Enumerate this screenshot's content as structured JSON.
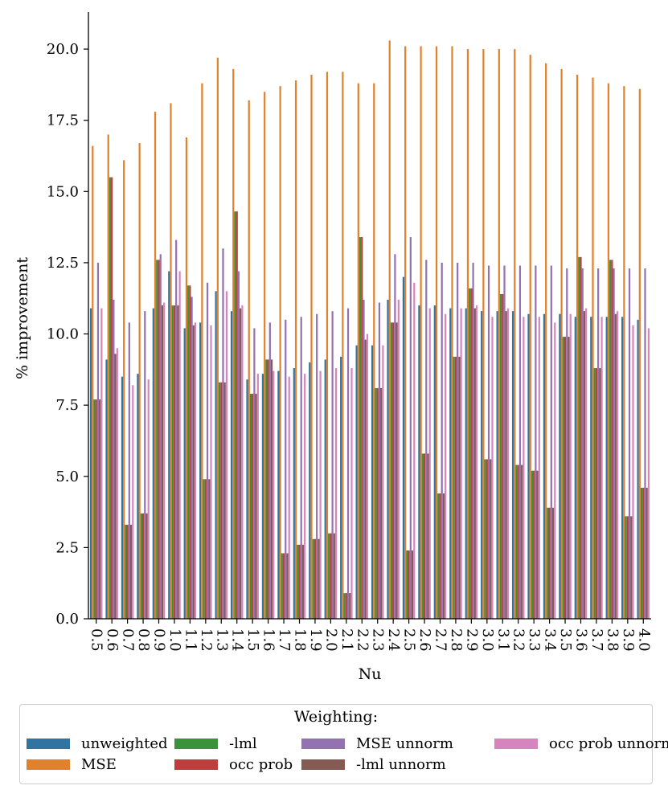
{
  "chart_data": {
    "type": "bar",
    "title": "",
    "xlabel": "Nu",
    "ylabel": "% improvement",
    "ylim": [
      0,
      21.3
    ],
    "yticks": [
      "0.0",
      "2.5",
      "5.0",
      "7.5",
      "10.0",
      "12.5",
      "15.0",
      "17.5",
      "20.0"
    ],
    "categories": [
      "0.5",
      "0.6",
      "0.7",
      "0.8",
      "0.9",
      "1.0",
      "1.1",
      "1.2",
      "1.3",
      "1.4",
      "1.5",
      "1.6",
      "1.7",
      "1.8",
      "1.9",
      "2.0",
      "2.1",
      "2.2",
      "2.3",
      "2.4",
      "2.5",
      "2.6",
      "2.7",
      "2.8",
      "2.9",
      "3.0",
      "3.1",
      "3.2",
      "3.3",
      "3.4",
      "3.5",
      "3.6",
      "3.7",
      "3.8",
      "3.9",
      "4.0"
    ],
    "legend_title": "Weighting:",
    "legend_position": "below",
    "series": [
      {
        "name": "unweighted",
        "color": "#3274a1",
        "values": [
          10.9,
          9.1,
          8.5,
          8.6,
          10.9,
          12.2,
          10.2,
          10.4,
          11.5,
          10.8,
          8.4,
          8.6,
          8.7,
          8.8,
          9.0,
          9.1,
          9.2,
          9.6,
          9.6,
          11.2,
          12.0,
          11.0,
          11.0,
          10.9,
          10.9,
          10.8,
          10.8,
          10.8,
          10.7,
          10.7,
          10.7,
          10.6,
          10.6,
          10.6,
          10.6,
          10.5
        ]
      },
      {
        "name": "MSE",
        "color": "#e1812c",
        "values": [
          16.6,
          17.0,
          16.1,
          16.7,
          17.8,
          18.1,
          16.9,
          18.8,
          19.7,
          19.3,
          18.2,
          18.5,
          18.7,
          18.9,
          19.1,
          19.2,
          19.2,
          18.8,
          18.8,
          20.3,
          20.1,
          20.1,
          20.1,
          20.1,
          20.0,
          20.0,
          20.0,
          20.0,
          19.8,
          19.5,
          19.3,
          19.1,
          19.0,
          18.8,
          18.7,
          18.6
        ]
      },
      {
        "name": "-lml",
        "color": "#3a923a",
        "values": [
          7.7,
          15.5,
          3.3,
          3.7,
          12.6,
          11.0,
          11.7,
          4.9,
          8.3,
          14.3,
          7.9,
          9.1,
          2.3,
          2.6,
          2.8,
          3.0,
          0.9,
          13.4,
          8.1,
          10.4,
          2.4,
          5.8,
          4.4,
          9.2,
          11.6,
          5.6,
          11.4,
          5.4,
          5.2,
          3.9,
          9.9,
          12.7,
          8.8,
          12.6,
          3.6,
          4.6
        ]
      },
      {
        "name": "occ prob",
        "color": "#c03d3e",
        "values": [
          7.7,
          15.5,
          3.3,
          3.7,
          12.6,
          11.0,
          11.7,
          4.9,
          8.3,
          14.3,
          7.9,
          9.1,
          2.3,
          2.6,
          2.8,
          3.0,
          0.9,
          13.4,
          8.1,
          10.4,
          2.4,
          5.8,
          4.4,
          9.2,
          11.6,
          5.6,
          11.4,
          5.4,
          5.2,
          3.9,
          9.9,
          12.7,
          8.8,
          12.6,
          3.6,
          4.6
        ]
      },
      {
        "name": "MSE unnorm",
        "color": "#9372b2",
        "values": [
          12.5,
          11.2,
          10.4,
          10.8,
          12.8,
          13.3,
          11.3,
          11.8,
          13.0,
          12.2,
          10.2,
          10.4,
          10.5,
          10.6,
          10.7,
          10.8,
          10.9,
          11.2,
          11.1,
          12.8,
          13.4,
          12.6,
          12.5,
          12.5,
          12.5,
          12.4,
          12.4,
          12.4,
          12.4,
          12.4,
          12.3,
          12.3,
          12.3,
          12.3,
          12.3,
          12.3
        ]
      },
      {
        "name": "-lml unnorm",
        "color": "#845b53",
        "values": [
          7.7,
          9.3,
          3.3,
          3.7,
          11.0,
          11.0,
          10.3,
          4.9,
          8.3,
          10.9,
          7.9,
          9.1,
          2.3,
          2.6,
          2.8,
          3.0,
          0.9,
          9.8,
          8.1,
          10.4,
          2.4,
          5.8,
          4.4,
          9.2,
          10.9,
          5.6,
          10.8,
          5.4,
          5.2,
          3.9,
          9.9,
          10.8,
          8.8,
          10.7,
          3.6,
          4.6
        ]
      },
      {
        "name": "occ prob unnorm",
        "color": "#d684bd",
        "values": [
          10.9,
          9.5,
          8.2,
          8.4,
          11.1,
          12.2,
          10.4,
          10.3,
          11.5,
          11.0,
          8.6,
          8.7,
          8.5,
          8.6,
          8.7,
          8.8,
          8.8,
          10.0,
          9.6,
          11.2,
          11.8,
          10.9,
          10.7,
          10.9,
          11.0,
          10.6,
          10.9,
          10.6,
          10.6,
          10.4,
          10.7,
          10.9,
          10.6,
          10.8,
          10.3,
          10.2
        ]
      }
    ]
  }
}
